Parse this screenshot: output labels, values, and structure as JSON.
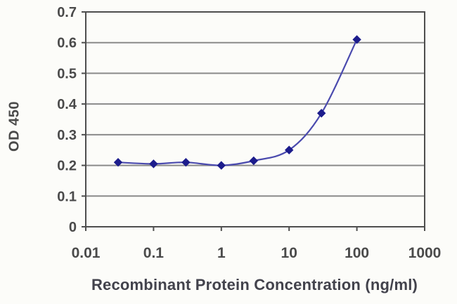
{
  "figure": {
    "ylabel": "OD 450",
    "xlabel": "Recombinant Protein Concentration (ng/ml)"
  },
  "chart_data": {
    "type": "line",
    "title": "",
    "xlabel": "Recombinant Protein Concentration (ng/ml)",
    "ylabel": "OD 450",
    "x_scale": "log",
    "xlim": [
      0.01,
      1000
    ],
    "ylim": [
      0,
      0.7
    ],
    "x_ticks": [
      0.01,
      0.1,
      1,
      10,
      100,
      1000
    ],
    "x_tick_labels": [
      "0.01",
      "0.1",
      "1",
      "10",
      "100",
      "1000"
    ],
    "y_ticks": [
      0,
      0.1,
      0.2,
      0.3,
      0.4,
      0.5,
      0.6,
      0.7
    ],
    "y_tick_labels": [
      "0",
      "0.1",
      "0.2",
      "0.3",
      "0.4",
      "0.5",
      "0.6",
      "0.7"
    ],
    "grid": "horizontal",
    "legend": "none",
    "marker": "diamond",
    "x": [
      0.03,
      0.1,
      0.3,
      1,
      3,
      10,
      30,
      100
    ],
    "series": [
      {
        "name": "OD 450",
        "values": [
          0.21,
          0.205,
          0.21,
          0.2,
          0.215,
          0.25,
          0.37,
          0.61
        ]
      }
    ],
    "colors": {
      "line": "#4a4aae",
      "marker": "#1c1c8c",
      "grid": "#8a8a8a",
      "frame": "#4e4e4e",
      "tick_text": "#4a4a4a",
      "axis_title_text": "#42424c",
      "background": "#fcfcf9"
    }
  }
}
